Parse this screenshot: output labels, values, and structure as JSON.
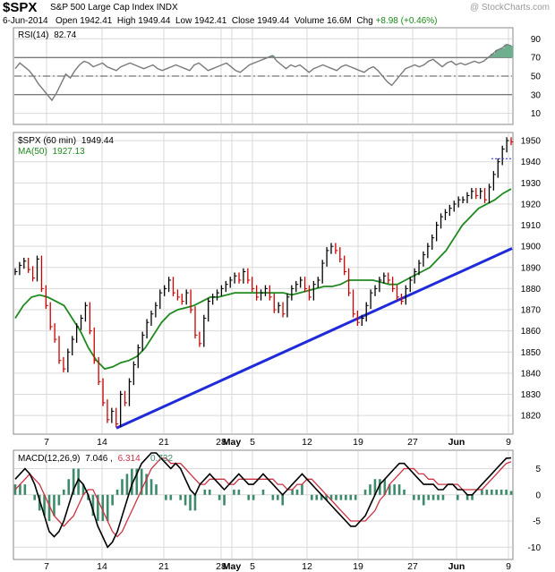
{
  "header": {
    "symbol": "$SPX",
    "name": "S&P 500 Large Cap Index",
    "exchange": "INDX",
    "watermark": "@ StockCharts.com",
    "date": "6-Jun-2014",
    "open_label": "Open",
    "open": "1942.41",
    "high_label": "High",
    "high": "1949.44",
    "low_label": "Low",
    "low": "1942.41",
    "close_label": "Close",
    "close": "1949.44",
    "volume_label": "Volume",
    "volume": "16.6M",
    "chg_label": "Chg",
    "chg": "+8.98 (+0.46%)"
  },
  "colors": {
    "price": "#000000",
    "down_bar": "#cc0000",
    "ma": "#1f8a1f",
    "trendline": "#1f2ad9",
    "rsi_line": "#7a7a7a",
    "rsi_fill": "#6fae8f",
    "macd_line": "#000000",
    "signal_line": "#cc3344",
    "histogram": "#3d8b6b",
    "grid": "#d9d9d9"
  },
  "chart_data": [
    {
      "type": "line",
      "panel": "rsi",
      "label": "RSI(14)",
      "last_value": "82.74",
      "y_ticks": [
        10,
        30,
        50,
        70,
        90
      ],
      "ylim": [
        0,
        100
      ],
      "reference_levels": [
        30,
        50,
        70
      ],
      "values": [
        58,
        64,
        60,
        56,
        50,
        42,
        36,
        30,
        24,
        32,
        42,
        52,
        48,
        56,
        62,
        66,
        64,
        60,
        62,
        64,
        60,
        58,
        56,
        60,
        62,
        64,
        62,
        60,
        58,
        60,
        62,
        58,
        56,
        58,
        60,
        62,
        60,
        58,
        56,
        62,
        64,
        60,
        56,
        58,
        60,
        62,
        64,
        60,
        56,
        54,
        58,
        62,
        64,
        66,
        68,
        70,
        72,
        66,
        62,
        58,
        62,
        60,
        62,
        58,
        54,
        58,
        60,
        62,
        60,
        58,
        56,
        60,
        62,
        60,
        58,
        56,
        54,
        58,
        60,
        56,
        50,
        44,
        40,
        46,
        52,
        58,
        60,
        62,
        60,
        62,
        66,
        68,
        64,
        60,
        64,
        66,
        62,
        64,
        62,
        64,
        66,
        64,
        66,
        70,
        74,
        78,
        80,
        84,
        82.74
      ]
    },
    {
      "type": "line",
      "panel": "price",
      "label": "$SPX (60 min)",
      "last_value": "1949.44",
      "ma_label": "MA(50)",
      "ma_value": "1927.13",
      "x_tick_labels": [
        "7",
        "14",
        "21",
        "28",
        "May",
        "5",
        "12",
        "19",
        "27",
        "Jun",
        "9"
      ],
      "y_ticks": [
        1820,
        1830,
        1840,
        1850,
        1860,
        1870,
        1880,
        1890,
        1900,
        1910,
        1920,
        1930,
        1940,
        1950
      ],
      "ylim": [
        1812,
        1953
      ],
      "close": [
        1888,
        1891,
        1893,
        1889,
        1885,
        1894,
        1880,
        1872,
        1862,
        1856,
        1846,
        1842,
        1850,
        1856,
        1862,
        1866,
        1872,
        1860,
        1846,
        1836,
        1826,
        1818,
        1822,
        1816,
        1830,
        1826,
        1836,
        1844,
        1852,
        1858,
        1864,
        1868,
        1872,
        1878,
        1880,
        1884,
        1878,
        1876,
        1874,
        1878,
        1870,
        1858,
        1854,
        1866,
        1874,
        1876,
        1878,
        1880,
        1882,
        1884,
        1886,
        1884,
        1888,
        1884,
        1880,
        1876,
        1878,
        1880,
        1876,
        1870,
        1872,
        1868,
        1876,
        1880,
        1882,
        1884,
        1880,
        1876,
        1882,
        1884,
        1892,
        1898,
        1900,
        1898,
        1894,
        1888,
        1878,
        1868,
        1864,
        1866,
        1872,
        1878,
        1880,
        1884,
        1886,
        1884,
        1880,
        1876,
        1874,
        1880,
        1884,
        1888,
        1892,
        1896,
        1900,
        1904,
        1910,
        1914,
        1916,
        1918,
        1920,
        1922,
        1922,
        1924,
        1926,
        1924,
        1926,
        1922,
        1928,
        1934,
        1940,
        1946,
        1950,
        1949.44
      ],
      "ma": [
        1866,
        1872,
        1876,
        1877,
        1876,
        1874,
        1872,
        1866,
        1860,
        1852,
        1846,
        1842,
        1843,
        1845,
        1846,
        1848,
        1852,
        1858,
        1864,
        1868,
        1870,
        1871,
        1872,
        1874,
        1876,
        1876,
        1877,
        1878,
        1878,
        1878,
        1878,
        1878,
        1878,
        1878,
        1877,
        1878,
        1879,
        1880,
        1881,
        1881,
        1882,
        1884,
        1884,
        1884,
        1884,
        1883,
        1882,
        1882,
        1884,
        1886,
        1888,
        1890,
        1894,
        1898,
        1904,
        1910,
        1914,
        1918,
        1920,
        1922,
        1925,
        1927.13
      ],
      "trendline": {
        "start_label": "14",
        "start_value": 1814,
        "end_label": "9",
        "end_value": 1899
      }
    },
    {
      "type": "line",
      "panel": "macd",
      "label": "MACD(12,26,9)",
      "macd_value": "7.046",
      "signal_value": "6.314",
      "histogram_value": "0.732",
      "y_ticks": [
        -10,
        -5,
        0,
        5
      ],
      "ylim": [
        -12,
        8
      ],
      "macd": [
        3,
        4,
        5,
        4,
        2,
        -1,
        -4,
        -7,
        -8,
        -7,
        -5,
        -2,
        1,
        3,
        2,
        0,
        -3,
        -6,
        -8,
        -10,
        -9,
        -7,
        -4,
        -1,
        2,
        4,
        6,
        7,
        8,
        8,
        7,
        6,
        5,
        6,
        5,
        3,
        1,
        0,
        2,
        3,
        4,
        3,
        2,
        1,
        2,
        3,
        4,
        3,
        2,
        2,
        3,
        4,
        3,
        2,
        1,
        0,
        1,
        2,
        3,
        4,
        3,
        2,
        1,
        0,
        -1,
        -2,
        -3,
        -4,
        -5,
        -6,
        -6,
        -5,
        -4,
        -2,
        0,
        2,
        3,
        4,
        5,
        6,
        6,
        5,
        4,
        3,
        2,
        2,
        2,
        1,
        1,
        2,
        2,
        1,
        1,
        0,
        0,
        1,
        2,
        3,
        4,
        5,
        6,
        7,
        7.046
      ],
      "signal": [
        1,
        2,
        3,
        4,
        3,
        2,
        0,
        -2,
        -4,
        -5,
        -6,
        -5,
        -4,
        -2,
        0,
        1,
        1,
        -1,
        -3,
        -5,
        -7,
        -8,
        -7,
        -5,
        -3,
        -1,
        1,
        3,
        5,
        6,
        7,
        7,
        6,
        6,
        6,
        5,
        4,
        3,
        2,
        2,
        3,
        3,
        3,
        3,
        2,
        2,
        3,
        3,
        3,
        3,
        3,
        3,
        3,
        3,
        2,
        2,
        1,
        1,
        2,
        2,
        3,
        3,
        2,
        1,
        0,
        -1,
        -2,
        -3,
        -4,
        -5,
        -5,
        -5,
        -5,
        -4,
        -3,
        -1,
        0,
        2,
        3,
        4,
        5,
        5,
        5,
        4,
        4,
        3,
        3,
        2,
        2,
        2,
        2,
        2,
        1,
        1,
        1,
        1,
        1,
        2,
        3,
        4,
        5,
        6,
        6.314
      ]
    }
  ]
}
